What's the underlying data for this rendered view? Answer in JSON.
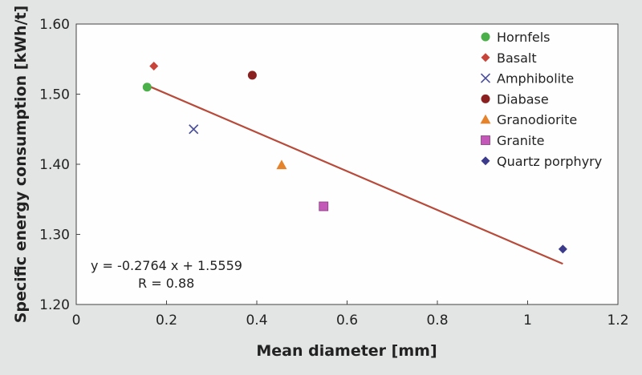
{
  "chart_data": {
    "type": "scatter",
    "xlabel": "Mean diameter [mm]",
    "ylabel": "Specific energy consumption [kWh/t]",
    "xlim": [
      0,
      1.2
    ],
    "ylim": [
      1.2,
      1.6
    ],
    "x_ticks": [
      0,
      0.2,
      0.4,
      0.6,
      0.8,
      1,
      1.2
    ],
    "x_tick_labels": [
      "0",
      "0.2",
      "0.4",
      "0.6",
      "0.8",
      "1",
      "1.2"
    ],
    "y_ticks": [
      1.2,
      1.3,
      1.4,
      1.5,
      1.6
    ],
    "y_tick_labels": [
      "1.20",
      "1.30",
      "1.40",
      "1.50",
      "1.60"
    ],
    "grid": false,
    "legend_position": "top-right",
    "series": [
      {
        "name": "Hornfels",
        "marker": "circle",
        "color": "#4bb049",
        "x": [
          0.157
        ],
        "y": [
          1.51
        ]
      },
      {
        "name": "Basalt",
        "marker": "diamond",
        "color": "#c8443a",
        "x": [
          0.172
        ],
        "y": [
          1.54
        ]
      },
      {
        "name": "Amphibolite",
        "marker": "x",
        "color": "#4b4f9a",
        "x": [
          0.26
        ],
        "y": [
          1.45
        ]
      },
      {
        "name": "Diabase",
        "marker": "circle",
        "color": "#8b2020",
        "x": [
          0.39
        ],
        "y": [
          1.527
        ]
      },
      {
        "name": "Granodiorite",
        "marker": "triangle",
        "color": "#e4832c",
        "x": [
          0.455
        ],
        "y": [
          1.399
        ]
      },
      {
        "name": "Granite",
        "marker": "square",
        "color": "#c458b8",
        "x": [
          0.548
        ],
        "y": [
          1.34
        ]
      },
      {
        "name": "Quartz porphyry",
        "marker": "diamond",
        "color": "#3c3a8a",
        "x": [
          1.078
        ],
        "y": [
          1.279
        ]
      }
    ],
    "trendline": {
      "color": "#b84a3a",
      "slope": -0.2764,
      "intercept": 1.5559,
      "x_range": [
        0.157,
        1.078
      ]
    },
    "annotations": [
      "y = -0.2764 x + 1.5559",
      "R = 0.88"
    ]
  }
}
